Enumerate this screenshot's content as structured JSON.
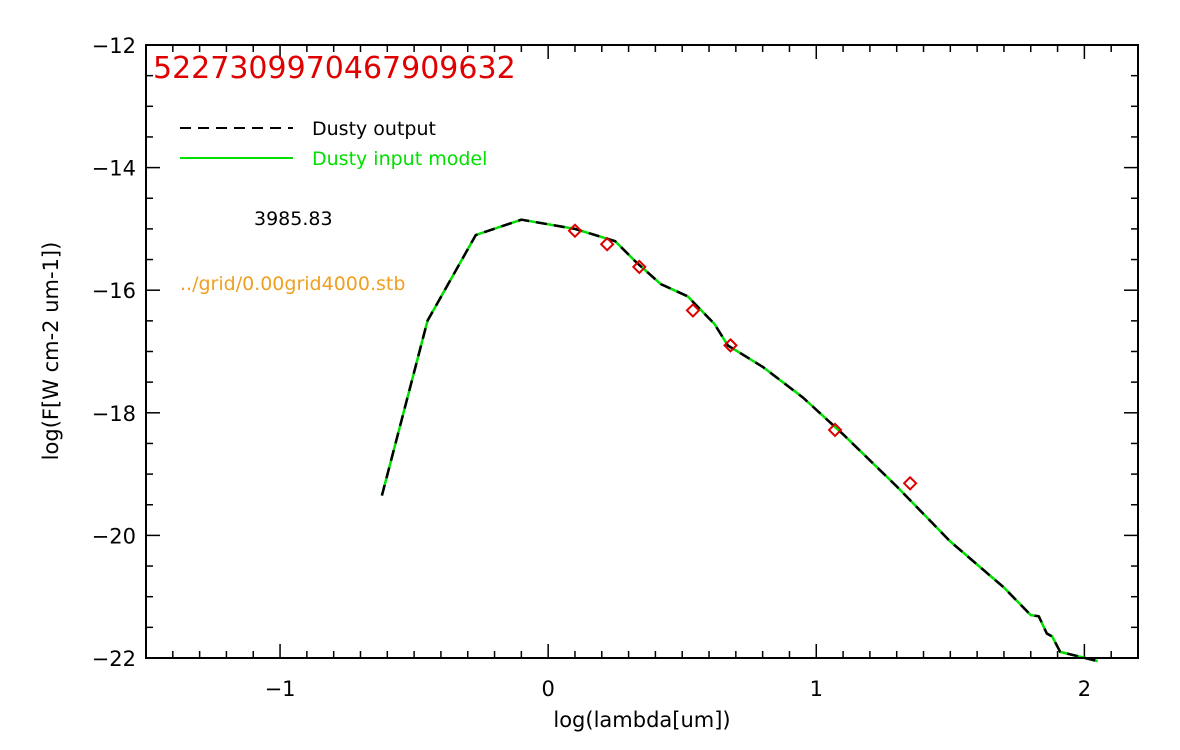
{
  "chart_data": {
    "type": "line",
    "title": "",
    "xlabel": "log(lambda[um])",
    "ylabel": "log(F[W cm-2 um-1])",
    "xlim": [
      -1.5,
      2.2
    ],
    "ylim": [
      -22,
      -12
    ],
    "x_ticks": [
      -1,
      0,
      1,
      2
    ],
    "x_tick_labels": [
      "−1",
      "0",
      "1",
      "2"
    ],
    "y_ticks": [
      -22,
      -20,
      -18,
      -16,
      -14,
      -12
    ],
    "y_tick_labels": [
      "−22",
      "−20",
      "−18",
      "−16",
      "−14",
      "−12"
    ],
    "grid": false,
    "legend_position": "top-left",
    "series": [
      {
        "name": "Dusty output",
        "style": "dashed",
        "color": "#000000",
        "x": [
          -0.62,
          -0.45,
          -0.27,
          -0.1,
          0.1,
          0.25,
          0.33,
          0.42,
          0.52,
          0.62,
          0.67,
          0.8,
          0.95,
          1.1,
          1.3,
          1.5,
          1.7,
          1.8,
          1.83,
          1.86,
          1.88,
          1.91,
          2.05
        ],
        "y": [
          -19.35,
          -16.5,
          -15.1,
          -14.85,
          -15.0,
          -15.2,
          -15.55,
          -15.9,
          -16.1,
          -16.55,
          -16.9,
          -17.25,
          -17.75,
          -18.35,
          -19.2,
          -20.1,
          -20.85,
          -21.3,
          -21.32,
          -21.6,
          -21.65,
          -21.9,
          -22.05
        ]
      },
      {
        "name": "Dusty input model",
        "style": "solid",
        "color": "#00e000",
        "x": [
          -0.62,
          -0.45,
          -0.27,
          -0.1,
          0.1,
          0.25,
          0.33,
          0.42,
          0.52,
          0.62,
          0.67,
          0.8,
          0.95,
          1.1,
          1.3,
          1.5,
          1.7,
          1.8,
          1.83,
          1.86,
          1.88,
          1.91,
          2.05
        ],
        "y": [
          -19.35,
          -16.5,
          -15.1,
          -14.85,
          -15.0,
          -15.2,
          -15.55,
          -15.9,
          -16.1,
          -16.55,
          -16.9,
          -17.25,
          -17.75,
          -18.35,
          -19.2,
          -20.1,
          -20.85,
          -21.3,
          -21.32,
          -21.6,
          -21.65,
          -21.9,
          -22.05
        ]
      }
    ],
    "points": {
      "marker": "diamond",
      "color": "#dd0000",
      "x": [
        0.1,
        0.22,
        0.34,
        0.54,
        0.68,
        1.07,
        1.35
      ],
      "y": [
        -15.03,
        -15.25,
        -15.62,
        -16.33,
        -16.9,
        -18.28,
        -19.15
      ]
    },
    "annotations": {
      "id_text": "5227309970467909632",
      "id_color": "#e00000",
      "temperature_text": "3985.83",
      "temperature_color": "#000000",
      "grid_file_text": "../grid/0.00grid4000.stb",
      "grid_file_color": "#f0a020"
    },
    "legend": {
      "entries": [
        {
          "label": "Dusty output",
          "color": "#000000",
          "text_color": "#000000",
          "style": "dashed"
        },
        {
          "label": "Dusty input model",
          "color": "#00e000",
          "text_color": "#00e000",
          "style": "solid"
        }
      ]
    }
  }
}
